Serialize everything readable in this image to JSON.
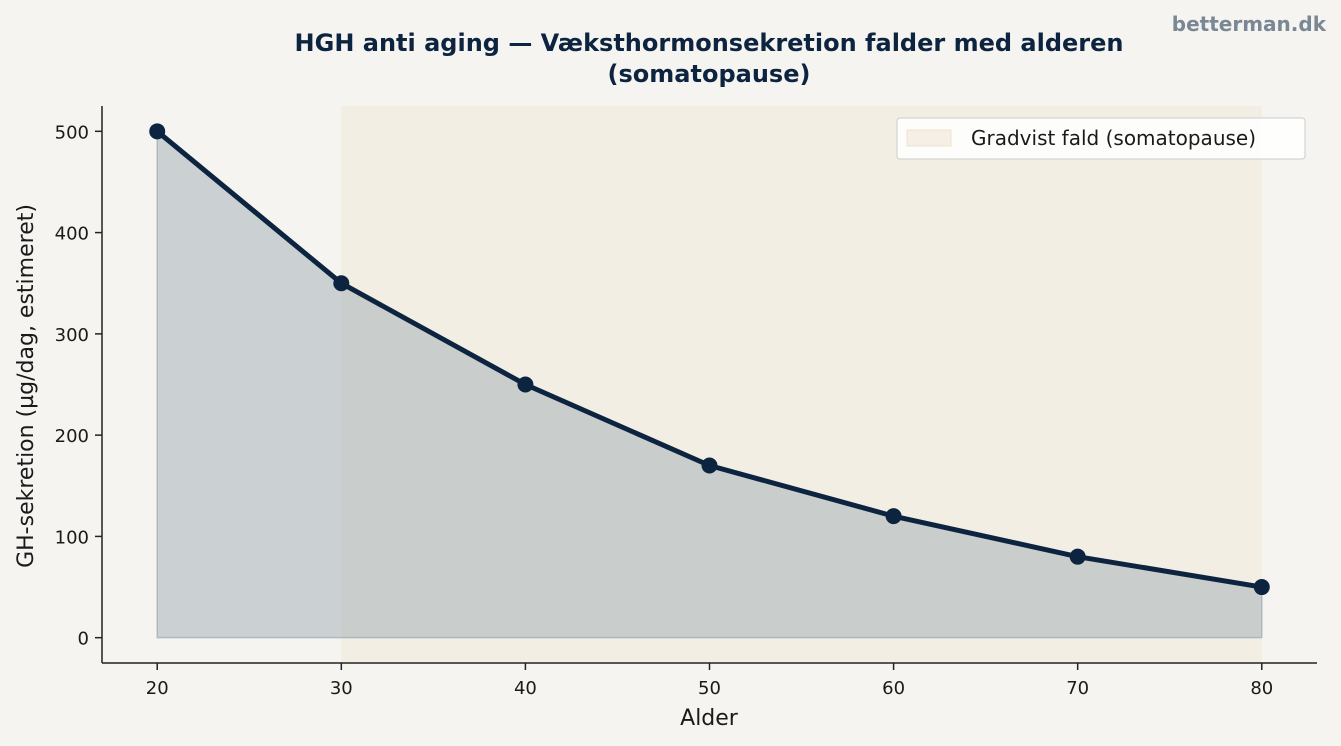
{
  "watermark": "betterman.dk",
  "chart_data": {
    "type": "line",
    "title_line1": "HGH anti aging — Væksthormonsekretion falder med alderen",
    "title_line2": "(somatopause)",
    "xlabel": "Alder",
    "ylabel": "GH-sekretion (µg/dag, estimeret)",
    "x": [
      20,
      30,
      40,
      50,
      60,
      70,
      80
    ],
    "values": [
      500,
      350,
      250,
      170,
      120,
      80,
      50
    ],
    "xticks": [
      "20",
      "30",
      "40",
      "50",
      "60",
      "70",
      "80"
    ],
    "yticks": [
      "0",
      "100",
      "200",
      "300",
      "400",
      "500"
    ],
    "xlim": [
      17,
      83
    ],
    "ylim": [
      -25,
      525
    ],
    "shaded_region": {
      "x_start": 30,
      "x_end": 80,
      "label": "Gradvist fald (somatopause)"
    },
    "legend_position": "top-right",
    "grid": false,
    "colors": {
      "line": "#0d2440",
      "area_fill": "#8c9aa8",
      "shade": "#efe2cf",
      "background": "#f5f4f0"
    }
  }
}
